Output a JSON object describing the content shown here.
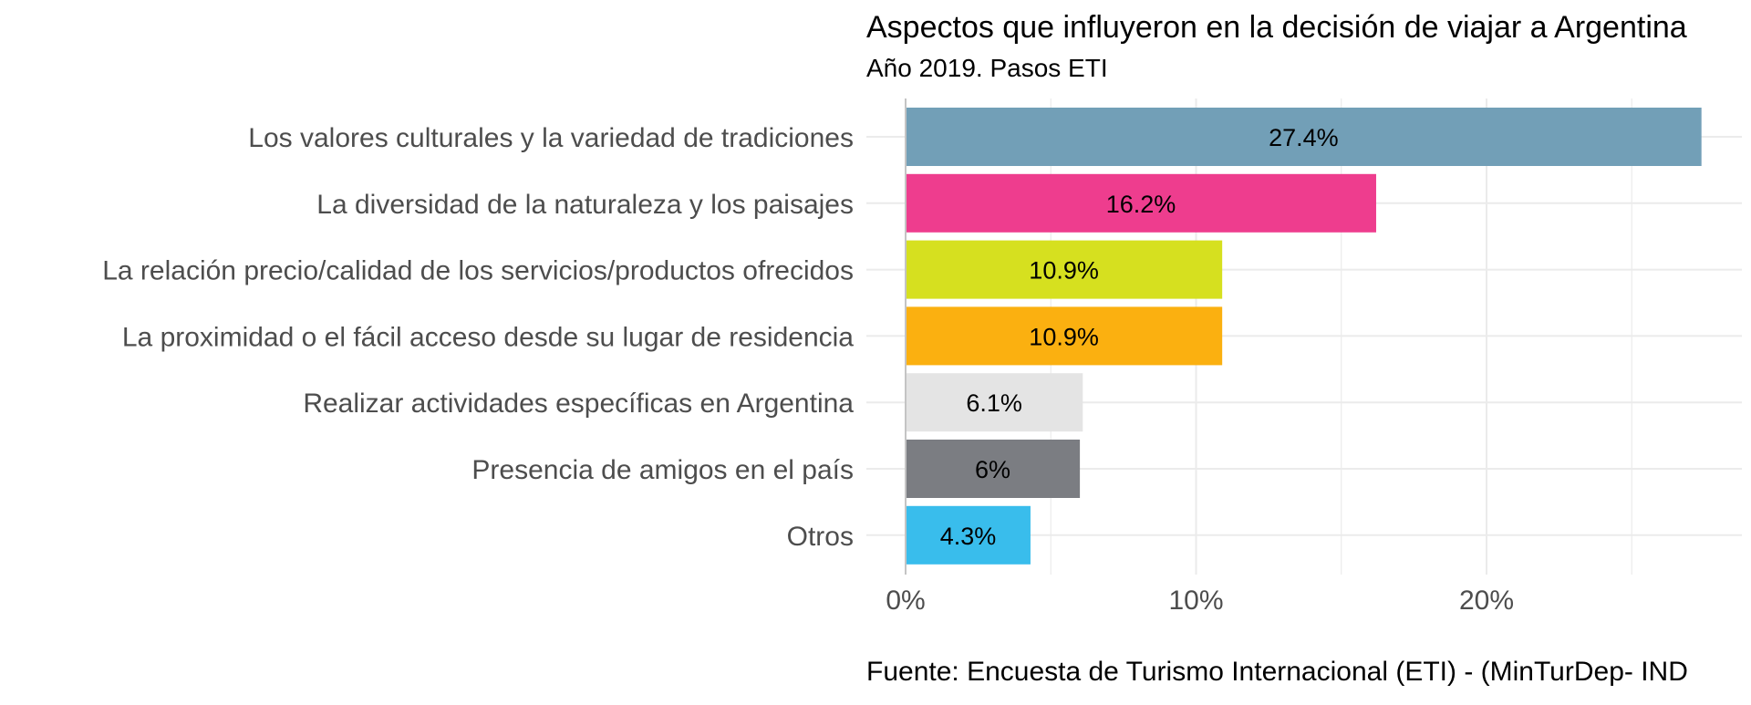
{
  "chart_data": {
    "type": "bar",
    "orientation": "horizontal",
    "title": "Aspectos que influyeron en la decisión de viajar a Argentina",
    "subtitle": "Año 2019. Pasos ETI",
    "caption": "Fuente: Encuesta de Turismo Internacional (ETI) - (MinTurDep- IND",
    "xlabel": "",
    "ylabel": "",
    "xlim": [
      0,
      28.6
    ],
    "x_ticks": [
      0,
      10,
      20
    ],
    "x_tick_labels": [
      "0%",
      "10%",
      "20%"
    ],
    "grid": true,
    "legend": "none",
    "categories": [
      "Los valores culturales y la variedad de tradiciones",
      "La diversidad de la naturaleza y los paisajes",
      "La relación precio/calidad de los servicios/productos ofrecidos",
      "La proximidad o el fácil acceso desde su lugar de residencia",
      "Realizar actividades específicas en Argentina",
      "Presencia de amigos en el país",
      "Otros"
    ],
    "values": [
      27.4,
      16.2,
      10.9,
      10.9,
      6.1,
      6,
      4.3
    ],
    "data_labels": [
      "27.4%",
      "16.2%",
      "10.9%",
      "10.9%",
      "6.1%",
      "6%",
      "4.3%"
    ],
    "colors": [
      "#729fb7",
      "#ee3d8e",
      "#d6e01f",
      "#fbb010",
      "#e4e4e4",
      "#7b7d82",
      "#39bdec"
    ]
  }
}
